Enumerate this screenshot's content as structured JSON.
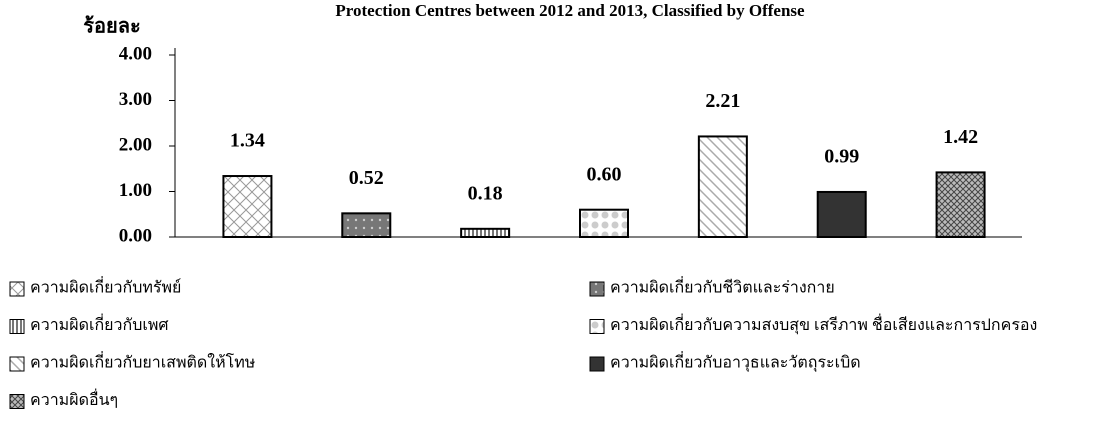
{
  "chart_data": {
    "type": "bar",
    "title": "Protection Centres between 2012 and 2013, Classified by Offense",
    "y_label": "ร้อยละ",
    "categories": [
      "ความผิดเกี่ยวกับทรัพย์",
      "ความผิดเกี่ยวกับชีวิตและร่างกาย",
      "ความผิดเกี่ยวกับเพศ",
      "ความผิดเกี่ยวกับความสงบสุข เสรีภาพ ชื่อเสียงและการปกครอง",
      "ความผิดเกี่ยวกับยาเสพติดให้โทษ",
      "ความผิดเกี่ยวกับอาวุธและวัตถุระเบิด",
      "ความผิดอื่นๆ"
    ],
    "values": [
      1.34,
      0.52,
      0.18,
      0.6,
      2.21,
      0.99,
      1.42
    ],
    "value_labels": [
      "1.34",
      "0.52",
      "0.18",
      "0.60",
      "2.21",
      "0.99",
      "1.42"
    ],
    "ylim": [
      0,
      4
    ],
    "yticks": [
      {
        "value": 0,
        "label": "0.00"
      },
      {
        "value": 1,
        "label": "1.00"
      },
      {
        "value": 2,
        "label": "2.00"
      },
      {
        "value": 3,
        "label": "3.00"
      },
      {
        "value": 4,
        "label": "4.00"
      }
    ],
    "legend": "bottom"
  }
}
